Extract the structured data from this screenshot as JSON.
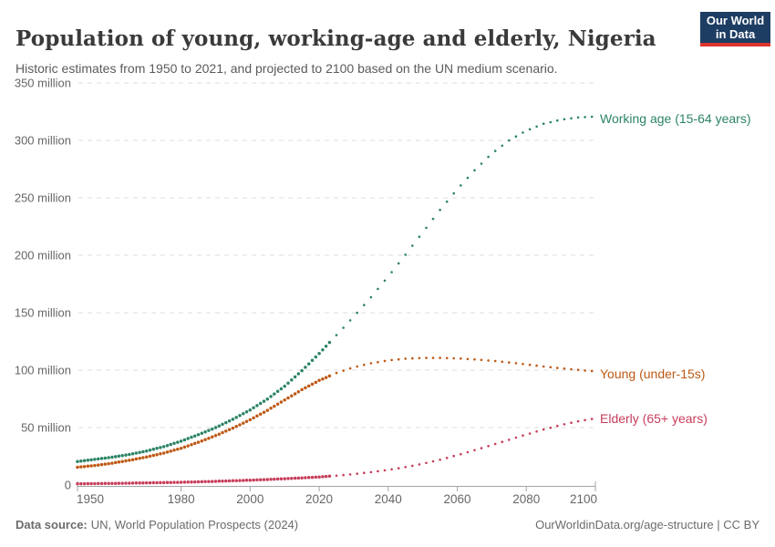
{
  "header": {
    "title": "Population of young, working-age and elderly, Nigeria",
    "subtitle": "Historic estimates from 1950 to 2021, and projected to 2100 based on the UN medium scenario.",
    "logo": {
      "line1": "Our World",
      "line2": "in Data"
    }
  },
  "chart_data": {
    "type": "line",
    "title": "Population of young, working-age and elderly, Nigeria",
    "unit": "million",
    "x_range": [
      1950,
      2100
    ],
    "y_range": [
      0,
      350
    ],
    "historic_until": 2023,
    "grid": "dashed-horizontal",
    "xticks": [
      1950,
      1980,
      2000,
      2020,
      2040,
      2060,
      2080,
      2100
    ],
    "yticks": [
      {
        "value": 0,
        "label": "0"
      },
      {
        "value": 50,
        "label": "50 million"
      },
      {
        "value": 100,
        "label": "100 million"
      },
      {
        "value": 150,
        "label": "150 million"
      },
      {
        "value": 200,
        "label": "200 million"
      },
      {
        "value": 250,
        "label": "250 million"
      },
      {
        "value": 300,
        "label": "300 million"
      },
      {
        "value": 350,
        "label": "350 million"
      }
    ],
    "x": [
      1950,
      1955,
      1960,
      1965,
      1970,
      1975,
      1980,
      1985,
      1990,
      1995,
      2000,
      2005,
      2010,
      2015,
      2020,
      2025,
      2030,
      2035,
      2040,
      2045,
      2050,
      2055,
      2060,
      2065,
      2070,
      2075,
      2080,
      2085,
      2090,
      2095,
      2100
    ],
    "series": [
      {
        "name": "Working age (15-64 years)",
        "color": "#2C8465",
        "values": [
          20.5,
          22.3,
          24.2,
          26.6,
          29.6,
          33.4,
          38.2,
          43.8,
          50.0,
          57.2,
          65.3,
          74.8,
          86.0,
          99.5,
          114.5,
          130.5,
          146.5,
          163.5,
          181.5,
          200.5,
          220.0,
          239.5,
          257.5,
          274.0,
          288.5,
          300.0,
          308.5,
          314.5,
          318.0,
          320.0,
          320.8
        ]
      },
      {
        "name": "Young (under-15s)",
        "color": "#BE5915",
        "values": [
          15.5,
          17.0,
          19.0,
          21.5,
          24.4,
          27.8,
          32.0,
          37.2,
          43.0,
          49.5,
          56.8,
          65.0,
          74.0,
          83.0,
          91.0,
          97.5,
          102.5,
          106.0,
          108.5,
          110.0,
          110.6,
          110.6,
          110.2,
          109.4,
          108.2,
          106.7,
          105.0,
          103.2,
          101.6,
          100.2,
          99.0
        ]
      },
      {
        "name": "Elderly (65+ years)",
        "color": "#C73E5A",
        "values": [
          1.1,
          1.2,
          1.4,
          1.6,
          1.9,
          2.1,
          2.4,
          2.8,
          3.2,
          3.7,
          4.2,
          4.8,
          5.5,
          6.2,
          7.0,
          8.1,
          9.5,
          11.2,
          13.2,
          15.6,
          18.5,
          22.0,
          26.0,
          30.3,
          34.8,
          39.4,
          44.0,
          48.3,
          52.2,
          55.5,
          58.0
        ]
      }
    ]
  },
  "footer": {
    "datasource_label": "Data source:",
    "datasource_value": "UN, World Population Prospects (2024)",
    "credit": "OurWorldinData.org/age-structure | CC BY"
  }
}
